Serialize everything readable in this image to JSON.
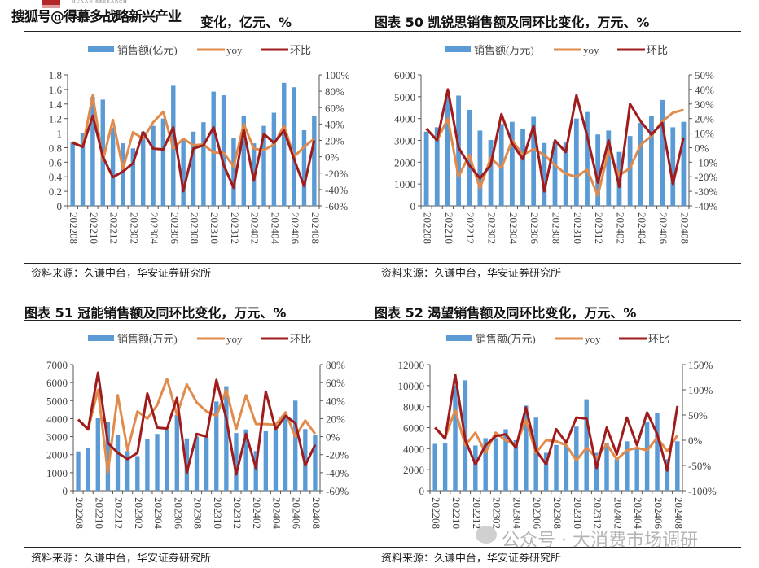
{
  "watermarks": {
    "top": "搜狐号@得慕多战略新兴产业",
    "logo_text": "HUAAN RESEARCH",
    "bottom": "公众号 · 大消费市场调研"
  },
  "colors": {
    "bar": "#5b9bd5",
    "yoy": "#e08b4c",
    "mom": "#a01c1c"
  },
  "chart_data": [
    {
      "type": "bar+line",
      "title": "变化，亿元、%",
      "legend": [
        "销售额(亿元)",
        "yoy",
        "环比"
      ],
      "legend_position": "top",
      "source": "资料来源：久谦中台，华安证券研究所",
      "categories": [
        "202208",
        "202209",
        "202210",
        "202211",
        "202212",
        "202301",
        "202302",
        "202303",
        "202304",
        "202305",
        "202306",
        "202307",
        "202308",
        "202309",
        "202310",
        "202311",
        "202312",
        "202401",
        "202402",
        "202403",
        "202404",
        "202405",
        "202406",
        "202407",
        "202408"
      ],
      "x_tick_labels": [
        "202208",
        "202210",
        "202212",
        "202302",
        "202304",
        "202306",
        "202308",
        "202310",
        "202312",
        "202402",
        "202404",
        "202406",
        "202408"
      ],
      "left_axis": {
        "min": 0,
        "max": 1.8,
        "step": 0.2,
        "ticks": [
          "0",
          "0.2",
          "0.4",
          "0.6",
          "0.8",
          "1",
          "1.2",
          "1.4",
          "1.6",
          "1.8"
        ]
      },
      "right_axis": {
        "min": -60,
        "max": 100,
        "step": 20,
        "ticks": [
          "-60%",
          "-40%",
          "-20%",
          "0%",
          "20%",
          "40%",
          "60%",
          "80%",
          "100%"
        ]
      },
      "series": [
        {
          "name": "销售额(亿元)",
          "axis": "left",
          "kind": "bar",
          "values": [
            0.88,
            1.0,
            1.5,
            1.46,
            1.08,
            0.86,
            0.79,
            1.02,
            1.1,
            1.2,
            1.65,
            0.9,
            1.02,
            1.15,
            1.57,
            1.52,
            0.93,
            1.23,
            0.86,
            1.1,
            1.28,
            1.69,
            1.63,
            1.04,
            1.24
          ]
        },
        {
          "name": "yoy",
          "axis": "right",
          "kind": "line",
          "values": [
            18,
            12,
            75,
            -5,
            45,
            -15,
            30,
            22,
            42,
            55,
            10,
            22,
            14,
            15,
            5,
            5,
            -12,
            40,
            10,
            8,
            15,
            38,
            0,
            12,
            22
          ]
        },
        {
          "name": "环比",
          "axis": "right",
          "kind": "line",
          "values": [
            17,
            12,
            50,
            0,
            -25,
            -18,
            -8,
            30,
            10,
            9,
            36,
            -42,
            10,
            14,
            36,
            -10,
            -38,
            33,
            -29,
            28,
            17,
            32,
            -3,
            -36,
            20
          ]
        }
      ]
    },
    {
      "type": "bar+line",
      "title": "图表 50 凯锐思销售额及同环比变化，万元、%",
      "legend": [
        "销售额(万元)",
        "yoy",
        "环比"
      ],
      "legend_position": "top",
      "source": "资料来源：久谦中台，华安证券研究所",
      "categories": [
        "202208",
        "202209",
        "202210",
        "202211",
        "202212",
        "202301",
        "202302",
        "202303",
        "202304",
        "202305",
        "202306",
        "202307",
        "202308",
        "202309",
        "202310",
        "202311",
        "202312",
        "202401",
        "202402",
        "202403",
        "202404",
        "202405",
        "202406",
        "202407",
        "202408"
      ],
      "x_tick_labels": [
        "202208",
        "202210",
        "202212",
        "202302",
        "202304",
        "202306",
        "202308",
        "202310",
        "202312",
        "202402",
        "202404",
        "202406",
        "202408"
      ],
      "left_axis": {
        "min": 0,
        "max": 6000,
        "step": 1000,
        "ticks": [
          "0",
          "1000",
          "2000",
          "3000",
          "4000",
          "5000",
          "6000"
        ]
      },
      "right_axis": {
        "min": -40,
        "max": 50,
        "step": 10,
        "ticks": [
          "-40%",
          "-30%",
          "-20%",
          "-10%",
          "0%",
          "10%",
          "20%",
          "30%",
          "40%",
          "50%"
        ]
      },
      "series": [
        {
          "name": "销售额(万元)",
          "axis": "left",
          "kind": "bar",
          "values": [
            3400,
            3600,
            5000,
            5050,
            4400,
            3450,
            3020,
            3750,
            3850,
            3520,
            4080,
            2880,
            2950,
            2900,
            4000,
            4300,
            3270,
            3450,
            2470,
            3200,
            3800,
            4120,
            4850,
            3600,
            3850
          ]
        },
        {
          "name": "yoy",
          "axis": "right",
          "kind": "line",
          "values": [
            13,
            5,
            20,
            -20,
            -5,
            -28,
            -7,
            -14,
            5,
            -5,
            -1,
            -5,
            -12,
            -18,
            -20,
            -15,
            -33,
            -2,
            -19,
            -14,
            2,
            8,
            18,
            24,
            26
          ]
        },
        {
          "name": "环比",
          "axis": "right",
          "kind": "line",
          "values": [
            13,
            5,
            40,
            0,
            -12,
            -21,
            -12,
            23,
            3,
            -8,
            15,
            -30,
            5,
            -3,
            36,
            8,
            -24,
            5,
            -27,
            30,
            18,
            9,
            17,
            -25,
            7
          ]
        }
      ]
    },
    {
      "type": "bar+line",
      "title": "图表 51 冠能销售额及同环比变化，万元、%",
      "legend": [
        "销售额(万元)",
        "yoy",
        "环比"
      ],
      "legend_position": "top",
      "source": "资料来源：久谦中台，华安证券研究所",
      "categories": [
        "202208",
        "202209",
        "202210",
        "202211",
        "202212",
        "202301",
        "202302",
        "202303",
        "202304",
        "202305",
        "202306",
        "202307",
        "202308",
        "202309",
        "202310",
        "202311",
        "202312",
        "202401",
        "202402",
        "202403",
        "202404",
        "202405",
        "202406",
        "202407",
        "202408"
      ],
      "x_tick_labels": [
        "202208",
        "202210",
        "202212",
        "202302",
        "202304",
        "202306",
        "202308",
        "202310",
        "202312",
        "202402",
        "202404",
        "202406",
        "202408"
      ],
      "left_axis": {
        "min": 0,
        "max": 7000,
        "step": 1000,
        "ticks": [
          "0",
          "1000",
          "2000",
          "3000",
          "4000",
          "5000",
          "6000",
          "7000"
        ]
      },
      "right_axis": {
        "min": -60,
        "max": 80,
        "step": 20,
        "ticks": [
          "-60%",
          "-40%",
          "-20%",
          "0%",
          "20%",
          "40%",
          "60%",
          "80%"
        ]
      },
      "series": [
        {
          "name": "销售额(万元)",
          "axis": "left",
          "kind": "bar",
          "values": [
            2180,
            2350,
            4020,
            3800,
            3100,
            2200,
            1920,
            2850,
            3150,
            3400,
            4200,
            2900,
            3000,
            2950,
            4950,
            5800,
            3200,
            3400,
            2200,
            3300,
            3400,
            4100,
            5000,
            3420,
            3100
          ]
        },
        {
          "name": "yoy",
          "axis": "right",
          "kind": "line",
          "values": [
            19,
            8,
            52,
            -40,
            46,
            -15,
            28,
            20,
            35,
            64,
            24,
            58,
            38,
            28,
            23,
            52,
            8,
            46,
            14,
            14,
            13,
            27,
            0,
            18,
            3
          ]
        },
        {
          "name": "环比",
          "axis": "right",
          "kind": "line",
          "values": [
            19,
            8,
            71,
            -7,
            -18,
            -25,
            -18,
            48,
            10,
            9,
            43,
            -40,
            3,
            0,
            63,
            20,
            -42,
            3,
            -35,
            50,
            8,
            23,
            15,
            -32,
            -9
          ]
        }
      ]
    },
    {
      "type": "bar+line",
      "title": "图表 52 渴望销售额及同环比变化，万元、%",
      "legend": [
        "销售额(万元)",
        "yoy",
        "环比"
      ],
      "legend_position": "top",
      "source": "资料来源：久谦中台，华安证券研究所",
      "categories": [
        "202208",
        "202209",
        "202210",
        "202211",
        "202212",
        "202301",
        "202302",
        "202303",
        "202304",
        "202305",
        "202306",
        "202307",
        "202308",
        "202309",
        "202310",
        "202311",
        "202312",
        "202401",
        "202402",
        "202403",
        "202404",
        "202405",
        "202406",
        "202407",
        "202408"
      ],
      "x_tick_labels": [
        "202208",
        "202210",
        "202212",
        "202302",
        "202304",
        "202306",
        "202308",
        "202310",
        "202312",
        "202402",
        "202404",
        "202406",
        "202408"
      ],
      "left_axis": {
        "min": 0,
        "max": 12000,
        "step": 2000,
        "ticks": [
          "0",
          "2000",
          "4000",
          "6000",
          "8000",
          "10000",
          "12000"
        ]
      },
      "right_axis": {
        "min": -100,
        "max": 150,
        "step": 50,
        "ticks": [
          "-100%",
          "-50%",
          "0%",
          "50%",
          "100%",
          "150%"
        ]
      },
      "series": [
        {
          "name": "销售额(万元)",
          "axis": "left",
          "kind": "bar",
          "values": [
            4450,
            4520,
            10000,
            10500,
            4300,
            5000,
            5000,
            5850,
            4800,
            8100,
            6950,
            3600,
            4350,
            4300,
            6100,
            8700,
            3600,
            4500,
            3000,
            4700,
            4100,
            6500,
            7400,
            3000,
            4700
          ]
        },
        {
          "name": "yoy",
          "axis": "right",
          "kind": "line",
          "values": [
            25,
            5,
            60,
            -10,
            15,
            -25,
            15,
            0,
            -10,
            40,
            -25,
            0,
            -2,
            -10,
            -40,
            -15,
            -35,
            -8,
            -38,
            -20,
            -15,
            -20,
            5,
            -22,
            10
          ]
        },
        {
          "name": "环比",
          "axis": "right",
          "kind": "line",
          "values": [
            25,
            3,
            130,
            0,
            -48,
            -10,
            8,
            12,
            -15,
            65,
            -20,
            -48,
            22,
            -5,
            45,
            43,
            -55,
            25,
            -28,
            45,
            -10,
            55,
            12,
            -60,
            68
          ]
        }
      ]
    }
  ]
}
